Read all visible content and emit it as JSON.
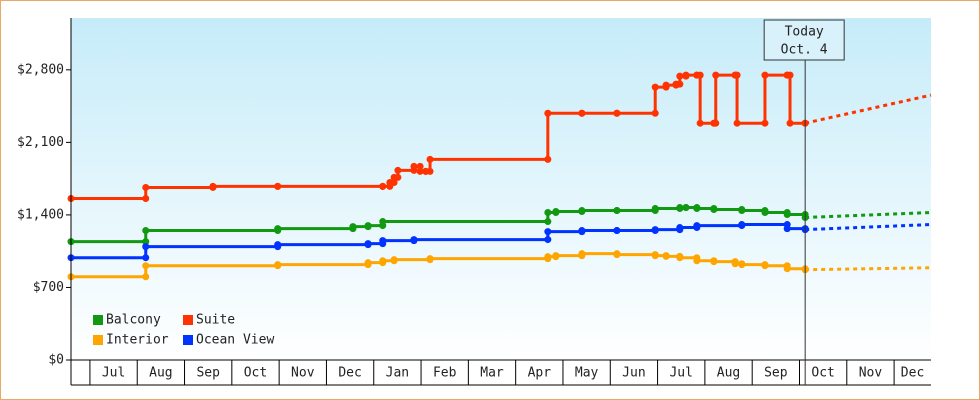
{
  "chart_data": {
    "type": "line",
    "step": "post",
    "xlim": [
      -0.4,
      17.78
    ],
    "ylim": [
      0,
      3300
    ],
    "yticks": [
      {
        "value": 0,
        "label": "$0"
      },
      {
        "value": 700,
        "label": "$700"
      },
      {
        "value": 1400,
        "label": "$1,400"
      },
      {
        "value": 2100,
        "label": "$2,100"
      },
      {
        "value": 2800,
        "label": "$2,800"
      }
    ],
    "xticks": [
      {
        "value": 0,
        "label": "Jul"
      },
      {
        "value": 1,
        "label": "Aug"
      },
      {
        "value": 2,
        "label": "Sep"
      },
      {
        "value": 3,
        "label": "Oct"
      },
      {
        "value": 4,
        "label": "Nov"
      },
      {
        "value": 5,
        "label": "Dec"
      },
      {
        "value": 6,
        "label": "Jan"
      },
      {
        "value": 7,
        "label": "Feb"
      },
      {
        "value": 8,
        "label": "Mar"
      },
      {
        "value": 9,
        "label": "Apr"
      },
      {
        "value": 10,
        "label": "May"
      },
      {
        "value": 11,
        "label": "Jun"
      },
      {
        "value": 12,
        "label": "Jul"
      },
      {
        "value": 13,
        "label": "Aug"
      },
      {
        "value": 14,
        "label": "Sep"
      },
      {
        "value": 15,
        "label": "Oct"
      },
      {
        "value": 16,
        "label": "Nov"
      },
      {
        "value": 17,
        "label": "Dec"
      }
    ],
    "grid": false,
    "legend": "lower left",
    "today": {
      "x": 15.12,
      "label": [
        "Today",
        "Oct. 4"
      ]
    },
    "series": [
      {
        "name": "Balcony",
        "color": "#119911",
        "x": [
          -0.4,
          1.18,
          3.97,
          5.56,
          5.88,
          6.19,
          9.68,
          9.85,
          10.4,
          11.14,
          11.95,
          12.47,
          12.6,
          12.83,
          13.19,
          13.78,
          14.27,
          14.74,
          15.12
        ],
        "values": [
          1142,
          1249,
          1268,
          1287,
          1297,
          1336,
          1423,
          1433,
          1442,
          1442,
          1462,
          1471,
          1471,
          1462,
          1452,
          1442,
          1423,
          1404,
          1375
        ],
        "forecast": {
          "x": [
            15.12,
            17.78
          ],
          "values": [
            1375,
            1423
          ]
        }
      },
      {
        "name": "Suite",
        "color": "#ff3300",
        "x": [
          -0.4,
          1.18,
          2.6,
          3.97,
          6.19,
          6.34,
          6.43,
          6.51,
          6.85,
          6.98,
          7.1,
          7.19,
          9.68,
          10.4,
          11.14,
          11.95,
          12.18,
          12.39,
          12.47,
          12.6,
          12.83,
          12.9,
          13.19,
          13.23,
          13.64,
          13.68,
          14.27,
          14.74,
          14.8,
          15.12
        ],
        "values": [
          1558,
          1665,
          1675,
          1675,
          1675,
          1713,
          1762,
          1830,
          1868,
          1820,
          1820,
          1936,
          2381,
          2381,
          2381,
          2633,
          2652,
          2662,
          2739,
          2749,
          2749,
          2285,
          2285,
          2749,
          2749,
          2285,
          2749,
          2749,
          2285,
          2285
        ],
        "forecast": {
          "x": [
            15.12,
            17.78
          ],
          "values": [
            2285,
            2556
          ]
        }
      },
      {
        "name": "Interior",
        "color": "#ffa500",
        "x": [
          -0.4,
          1.18,
          3.97,
          5.88,
          6.19,
          6.43,
          7.19,
          9.68,
          9.85,
          10.4,
          11.14,
          11.95,
          12.18,
          12.47,
          12.83,
          13.19,
          13.64,
          13.78,
          14.27,
          14.74,
          15.12
        ],
        "values": [
          803,
          910,
          920,
          939,
          958,
          968,
          978,
          997,
          1007,
          1026,
          1017,
          1007,
          1000,
          987,
          958,
          949,
          929,
          920,
          910,
          881,
          871
        ],
        "forecast": {
          "x": [
            15.12,
            17.78
          ],
          "values": [
            871,
            890
          ]
        }
      },
      {
        "name": "Ocean View",
        "color": "#0033ff",
        "x": [
          -0.4,
          1.18,
          3.97,
          5.88,
          6.19,
          6.85,
          9.68,
          10.4,
          11.14,
          11.95,
          12.47,
          12.83,
          13.78,
          14.74,
          15.12
        ],
        "values": [
          987,
          1094,
          1113,
          1123,
          1152,
          1162,
          1239,
          1249,
          1249,
          1258,
          1278,
          1297,
          1307,
          1268,
          1258
        ],
        "forecast": {
          "x": [
            15.12,
            17.78
          ],
          "values": [
            1258,
            1307
          ]
        }
      }
    ]
  }
}
